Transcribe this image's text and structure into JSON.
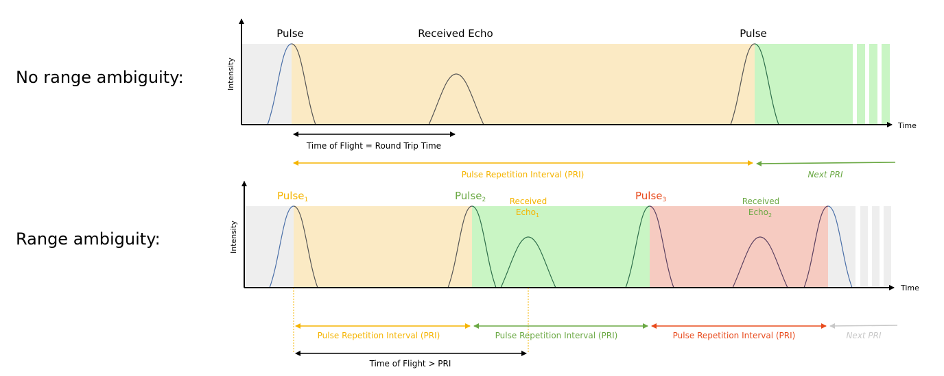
{
  "rows": {
    "top_label": "No range ambiguity:",
    "bottom_label": "Range ambiguity:"
  },
  "axes": {
    "y_label": "Intensity",
    "x_label": "Time"
  },
  "top": {
    "pulse_left": "Pulse",
    "echo": "Received Echo",
    "pulse_right": "Pulse",
    "tof": "Time of Flight = Round Trip Time",
    "pri": "Pulse Repetition Interval (PRI)",
    "next_pri": "Next PRI"
  },
  "bottom": {
    "pulse": "Pulse",
    "pulse1_sub": "1",
    "pulse2_sub": "2",
    "pulse3_sub": "3",
    "received": "Received",
    "echo": "Echo",
    "echo1_sub": "1",
    "echo2_sub": "2",
    "pri1": "Pulse Repetition Interval (PRI)",
    "pri2": "Pulse Repetition Interval (PRI)",
    "pri3": "Pulse Repetition Interval (PRI)",
    "next_pri": "Next PRI",
    "tof": "Time of Flight > PRI"
  },
  "colors": {
    "gray_bg": "#eeeeee",
    "yellow_bg": "#fbeac4",
    "green_bg": "#c9f5c4",
    "red_bg": "#f6cbc1",
    "yellow_text": "#f5b400",
    "green_text": "#6aa843",
    "red_text": "#e84a1c",
    "light_gray_text": "#c8c8c8"
  }
}
